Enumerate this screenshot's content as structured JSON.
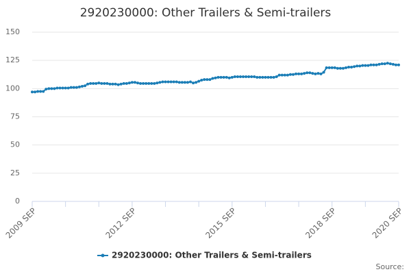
{
  "chart_data": {
    "type": "line",
    "title": "2920230000: Other Trailers & Semi-trailers",
    "source": "Source:",
    "categories": [
      "2009 SEP",
      null,
      null,
      null,
      null,
      null,
      null,
      null,
      null,
      null,
      null,
      null,
      null,
      null,
      null,
      null,
      null,
      null,
      null,
      null,
      null,
      null,
      null,
      null,
      null,
      null,
      null,
      null,
      null,
      null,
      null,
      null,
      null,
      null,
      null,
      null,
      "2012 SEP",
      null,
      null,
      null,
      null,
      null,
      null,
      null,
      null,
      null,
      null,
      null,
      null,
      null,
      null,
      null,
      null,
      null,
      null,
      null,
      null,
      null,
      null,
      null,
      null,
      null,
      null,
      null,
      null,
      null,
      null,
      null,
      null,
      null,
      null,
      null,
      "2015 SEP",
      null,
      null,
      null,
      null,
      null,
      null,
      null,
      null,
      null,
      null,
      null,
      null,
      null,
      null,
      null,
      null,
      null,
      null,
      null,
      null,
      null,
      null,
      null,
      null,
      null,
      null,
      null,
      null,
      null,
      null,
      null,
      null,
      null,
      null,
      null,
      "2018 SEP",
      null,
      null,
      null,
      null,
      null,
      null,
      null,
      null,
      null,
      null,
      null,
      null,
      null,
      null,
      null,
      null,
      null,
      null,
      null,
      null,
      null,
      null,
      null,
      "2020 SEP"
    ],
    "series": [
      {
        "name": "2920230000: Other Trailers & Semi-trailers",
        "color": "#1a7db6",
        "values": [
          97,
          97,
          97.5,
          97.5,
          97.5,
          99.5,
          100,
          100,
          100,
          100.5,
          100.5,
          100.5,
          100.5,
          100.5,
          101,
          101,
          101,
          101.5,
          102,
          102.5,
          104,
          104.5,
          104.5,
          104.5,
          105,
          104.5,
          104.5,
          104.5,
          104,
          104,
          104,
          103.5,
          104,
          104.5,
          104.5,
          105,
          105.5,
          105.5,
          105,
          104.5,
          104.5,
          104.5,
          104.5,
          104.5,
          104.5,
          105,
          105.5,
          106,
          106,
          106,
          106,
          106,
          106,
          105.5,
          105.5,
          105.5,
          105.5,
          106,
          105,
          105.5,
          106.5,
          107.5,
          108,
          108,
          108,
          109,
          109.5,
          110,
          110,
          110,
          110,
          109.5,
          110,
          110.5,
          110.5,
          110.5,
          110.5,
          110.5,
          110.5,
          110.5,
          110.5,
          110,
          110,
          110,
          110,
          110,
          110,
          110,
          110.5,
          112,
          112,
          112,
          112,
          112.5,
          112.5,
          113,
          113,
          113,
          113.5,
          114,
          114,
          113.5,
          113,
          113.5,
          113,
          114.5,
          118.5,
          118.5,
          118.5,
          118.5,
          118,
          118,
          118,
          118.5,
          119,
          119,
          119.5,
          120,
          120,
          120.5,
          120.5,
          120.5,
          121,
          121,
          121,
          121.5,
          122,
          122,
          122.5,
          122,
          121.5,
          121,
          121
        ]
      }
    ],
    "ylim": [
      0,
      150
    ],
    "yticks": [
      0,
      25,
      50,
      75,
      100,
      125,
      150
    ],
    "grid": true,
    "legend": "bottom"
  }
}
